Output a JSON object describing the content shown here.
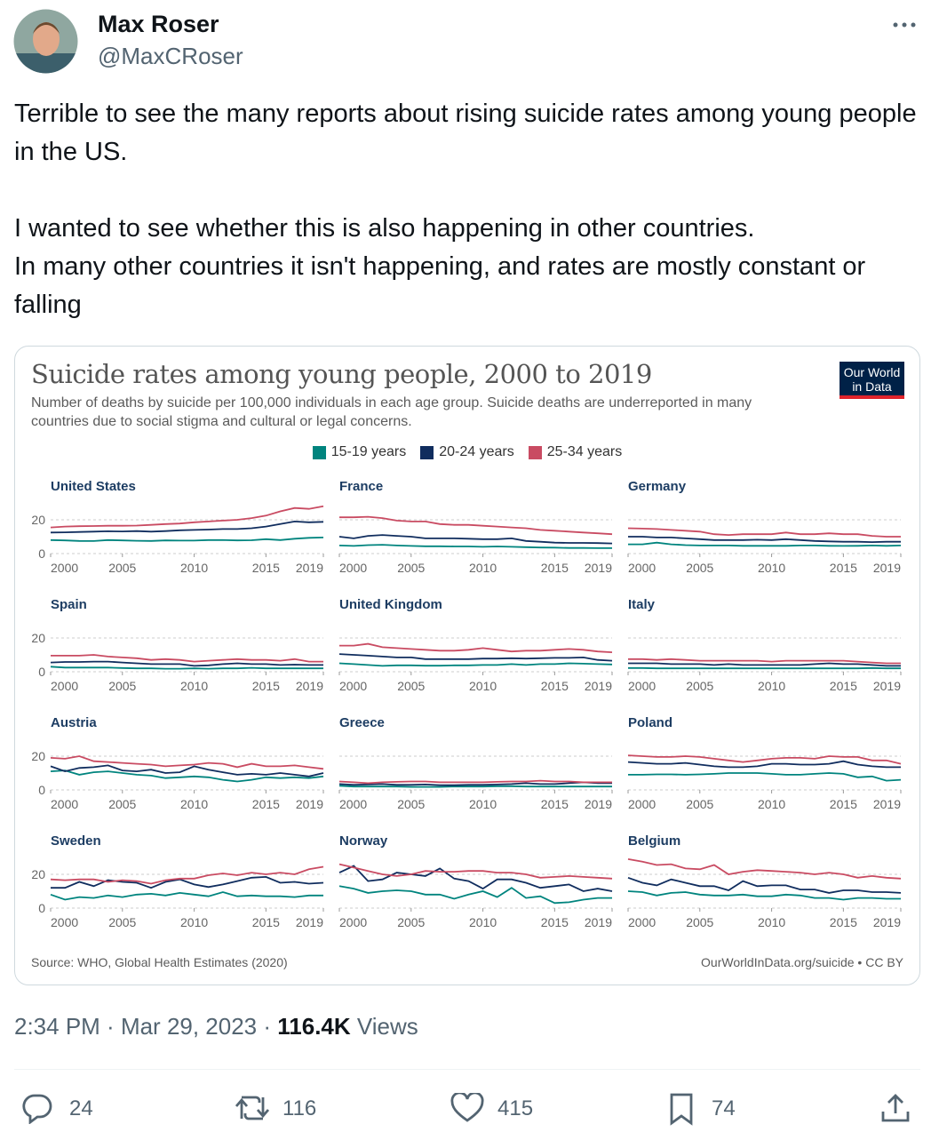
{
  "tweet": {
    "author": "Max Roser",
    "handle": "@MaxCRoser",
    "text": [
      "Terrible to see the many reports about rising suicide rates among young people in the US.",
      "I wanted to see whether this is also happening in other countries.",
      "In many other countries it isn't happening, and rates are mostly constant or falling"
    ],
    "time": "2:34 PM",
    "date": "Mar 29, 2023",
    "views": "116.4K",
    "views_label": "Views",
    "replies": 24,
    "retweets": 116,
    "likes": 415,
    "bookmarks": 74
  },
  "chart_data": {
    "type": "line",
    "title": "Suicide rates among young people, 2000 to 2019",
    "subtitle": "Number of deaths by suicide per 100,000 individuals in each age group. Suicide deaths are underreported in many countries due to social stigma and cultural or legal concerns.",
    "logo": [
      "Our World",
      "in Data"
    ],
    "source": "Source: WHO, Global Health Estimates (2020)",
    "credit": "OurWorldInData.org/suicide • CC BY",
    "series": [
      {
        "name": "15-19 years",
        "color": "#00847e"
      },
      {
        "name": "20-24 years",
        "color": "#102d5e"
      },
      {
        "name": "25-34 years",
        "color": "#c94b62"
      }
    ],
    "x": [
      2000,
      2001,
      2002,
      2003,
      2004,
      2005,
      2006,
      2007,
      2008,
      2009,
      2010,
      2011,
      2012,
      2013,
      2014,
      2015,
      2016,
      2017,
      2018,
      2019
    ],
    "xlim": [
      2000,
      2019
    ],
    "xticks": [
      2000,
      2005,
      2010,
      2015,
      2019
    ],
    "ylim": [
      0,
      30
    ],
    "yticks": [
      0,
      20
    ],
    "grid": true,
    "panels": [
      {
        "title": "United States",
        "values": [
          [
            8,
            7.8,
            7.5,
            7.4,
            8,
            7.8,
            7.6,
            7.5,
            7.8,
            7.7,
            7.7,
            8,
            8,
            7.8,
            7.9,
            8.5,
            8,
            8.8,
            9.3,
            9.5
          ],
          [
            12.5,
            12.6,
            12.8,
            13,
            13.2,
            13.1,
            13.3,
            13,
            13.3,
            13.8,
            14,
            14.2,
            14.5,
            14.5,
            15,
            16,
            17.5,
            19,
            18.5,
            18.8
          ],
          [
            15.5,
            16,
            16.2,
            16.3,
            16.5,
            16.5,
            16.6,
            17,
            17.5,
            17.8,
            18.5,
            19,
            19.5,
            20,
            21,
            22.5,
            25,
            27,
            26.5,
            28
          ]
        ]
      },
      {
        "title": "France",
        "values": [
          [
            4.8,
            4.5,
            5,
            5.2,
            4.8,
            4.5,
            4.3,
            4.3,
            4.2,
            4.2,
            4,
            4.2,
            4,
            3.8,
            3.6,
            3.5,
            3.3,
            3.3,
            3.2,
            3.2
          ],
          [
            10,
            9,
            10.5,
            11,
            10.5,
            10,
            9,
            9,
            9,
            8.8,
            8.5,
            8.5,
            9,
            7.5,
            7,
            6.5,
            6.3,
            6.3,
            6.2,
            6
          ],
          [
            21.5,
            21.5,
            21.8,
            21,
            19.5,
            19,
            19,
            17.5,
            17,
            17,
            16.5,
            16,
            15.5,
            15,
            14,
            13.5,
            13,
            12.5,
            12,
            11.5
          ]
        ]
      },
      {
        "title": "Germany",
        "values": [
          [
            5.5,
            5.5,
            6.5,
            5.5,
            5,
            4.8,
            4.8,
            4.8,
            4.6,
            4.6,
            4.6,
            4.6,
            4.8,
            4.8,
            4.6,
            4.5,
            4.6,
            4.8,
            4.6,
            4.8
          ],
          [
            10,
            10,
            9.5,
            9.5,
            9,
            8.5,
            8,
            8,
            8,
            8.2,
            8,
            8.5,
            8,
            7.5,
            7.2,
            7,
            7,
            6.8,
            7,
            7
          ],
          [
            15,
            14.8,
            14.5,
            14,
            13.5,
            13,
            11.5,
            11,
            11.5,
            11.5,
            11.5,
            12.5,
            11.5,
            11.5,
            12,
            11.5,
            11.5,
            10.5,
            10,
            10
          ]
        ]
      },
      {
        "title": "Spain",
        "values": [
          [
            3,
            2.5,
            2.5,
            2.5,
            2.5,
            2.2,
            2,
            2,
            1.8,
            1.8,
            2,
            1.8,
            2,
            2,
            2.3,
            2,
            2,
            2,
            2,
            2
          ],
          [
            5.5,
            5.8,
            5.8,
            6,
            6,
            5.5,
            5,
            4.5,
            4.5,
            4.5,
            3.5,
            3.8,
            4.5,
            5,
            4.5,
            4.5,
            4,
            4.2,
            4,
            4
          ],
          [
            9.5,
            9.5,
            9.5,
            10,
            9,
            8.5,
            8,
            7,
            7.5,
            7,
            6,
            6.5,
            7,
            7.5,
            7,
            7,
            6.5,
            7.5,
            6,
            6
          ]
        ]
      },
      {
        "title": "United Kingdom",
        "values": [
          [
            5,
            4.5,
            4,
            3.5,
            3.8,
            3.8,
            3.6,
            3.6,
            3.8,
            3.8,
            4,
            4,
            4.5,
            4,
            4.5,
            4.5,
            5,
            4.8,
            4.5,
            4.3
          ],
          [
            10.5,
            10,
            9.5,
            9,
            8.5,
            8.5,
            7.5,
            7.5,
            7.5,
            7.5,
            7.8,
            7.8,
            8,
            7.8,
            8,
            8.2,
            8.2,
            8.5,
            7,
            6.5
          ],
          [
            15.5,
            15.5,
            16.5,
            14.5,
            14,
            13.5,
            13,
            12.5,
            12.5,
            13,
            14,
            13,
            12,
            12.5,
            12.5,
            13,
            13.5,
            13,
            12,
            11.5
          ]
        ]
      },
      {
        "title": "Italy",
        "values": [
          [
            2.2,
            2.2,
            2,
            2,
            2,
            2,
            2,
            2,
            2,
            2,
            2,
            2,
            2,
            2,
            2,
            2,
            2,
            2.2,
            2,
            2
          ],
          [
            5,
            5,
            5,
            4.5,
            4.5,
            4.5,
            4,
            4.5,
            4,
            4,
            4,
            4,
            4,
            4.5,
            5,
            4.5,
            4.5,
            4,
            3.5,
            3.5
          ],
          [
            7.5,
            7.5,
            7,
            7.5,
            7,
            6.5,
            6.5,
            6.5,
            6.5,
            6.5,
            6,
            6.5,
            6.5,
            6.5,
            6.5,
            6.5,
            6,
            5.5,
            5,
            5
          ]
        ]
      },
      {
        "title": "Austria",
        "values": [
          [
            11,
            11.5,
            9,
            10.5,
            11,
            10,
            9,
            8.5,
            7,
            7.5,
            8,
            7.5,
            6,
            5,
            6,
            7.5,
            7,
            7.5,
            7,
            8
          ],
          [
            14,
            11,
            13,
            13.5,
            14.5,
            11.5,
            11,
            12,
            10,
            10.5,
            14,
            12,
            10.5,
            9,
            9.5,
            9,
            10,
            9,
            8,
            10
          ],
          [
            19,
            18.5,
            20,
            17,
            16.5,
            16,
            15.5,
            15,
            14,
            14.5,
            15,
            16,
            15.5,
            13.5,
            15.5,
            14,
            14,
            14.5,
            13.5,
            12.5
          ]
        ]
      },
      {
        "title": "Greece",
        "values": [
          [
            2.5,
            2,
            2,
            2,
            2,
            1.8,
            1.8,
            1.8,
            2,
            2,
            2,
            2.2,
            2.2,
            2,
            2,
            2,
            2,
            2,
            2,
            2
          ],
          [
            3.5,
            3,
            3.2,
            3.5,
            3,
            3,
            3.2,
            2.8,
            2.8,
            3,
            3,
            3.2,
            3.5,
            4,
            3.5,
            3.5,
            4,
            4.5,
            4,
            4
          ],
          [
            5,
            4.5,
            4,
            4.5,
            4.8,
            5,
            5,
            4.5,
            4.5,
            4.5,
            4.5,
            4.8,
            5,
            5,
            5.5,
            5,
            5,
            4.5,
            4.5,
            4.5
          ]
        ]
      },
      {
        "title": "Poland",
        "values": [
          [
            9,
            9,
            9.2,
            9.2,
            9,
            9.2,
            9.5,
            10,
            10,
            10,
            9.5,
            9,
            9,
            9.5,
            10,
            9.5,
            7.5,
            8,
            5.5,
            6
          ],
          [
            16.5,
            16,
            15.5,
            15.5,
            16,
            15,
            14,
            13.5,
            13.5,
            14,
            15.5,
            15.5,
            15,
            15,
            15.5,
            17,
            15,
            14,
            13.5,
            13.5
          ],
          [
            20.5,
            20,
            19.5,
            19.5,
            20,
            19.5,
            18.5,
            17.5,
            16.5,
            17.5,
            18.5,
            19,
            19,
            18.5,
            20,
            19.5,
            19.5,
            17.5,
            17.5,
            15.5
          ]
        ]
      },
      {
        "title": "Sweden",
        "values": [
          [
            8,
            5,
            6.5,
            6,
            7.5,
            6.5,
            8,
            8.5,
            7.5,
            9,
            8,
            7,
            9.5,
            7,
            7.5,
            7,
            7,
            6.5,
            7.5,
            7.5
          ],
          [
            12,
            12,
            15.5,
            13,
            16.5,
            15.5,
            15,
            12,
            15.5,
            17,
            14,
            12.5,
            14,
            16,
            18,
            18.5,
            15,
            15.5,
            14.5,
            15
          ],
          [
            17,
            16.5,
            17,
            17,
            15.5,
            16.5,
            16,
            14.5,
            16.5,
            17.5,
            17.5,
            19.5,
            20.5,
            19.5,
            21,
            20,
            21,
            20,
            23,
            24.5
          ]
        ]
      },
      {
        "title": "Norway",
        "values": [
          [
            13,
            11.5,
            9,
            10,
            10.5,
            10,
            8,
            8,
            5.5,
            8,
            10,
            6.5,
            12,
            6,
            7,
            3,
            3.5,
            5,
            6,
            6
          ],
          [
            21,
            25,
            16,
            17,
            21,
            20,
            19,
            23.5,
            17.5,
            16,
            11.5,
            17,
            17,
            15,
            12,
            13,
            14,
            10,
            11.5,
            10
          ],
          [
            26,
            24,
            22,
            20,
            19,
            20,
            22,
            21.5,
            21.5,
            22,
            22,
            21,
            21,
            20,
            18,
            18.5,
            19,
            18.5,
            18,
            17.5
          ]
        ]
      },
      {
        "title": "Belgium",
        "values": [
          [
            10,
            9.5,
            7.5,
            9,
            9.5,
            8,
            7.5,
            7.5,
            8,
            7,
            7,
            8,
            7.5,
            6,
            6,
            5,
            6,
            6,
            5.5,
            5.5
          ],
          [
            18,
            15,
            13.5,
            17,
            15,
            13,
            13,
            10.5,
            16,
            13,
            13.5,
            13.5,
            11,
            11,
            9,
            10.5,
            10.5,
            9.5,
            9.5,
            9
          ],
          [
            29,
            27.5,
            25.5,
            26,
            23.5,
            23,
            25.5,
            20,
            21.5,
            22.5,
            22,
            21.5,
            21,
            20,
            21,
            20,
            18,
            19,
            18,
            17.5
          ]
        ]
      }
    ]
  }
}
